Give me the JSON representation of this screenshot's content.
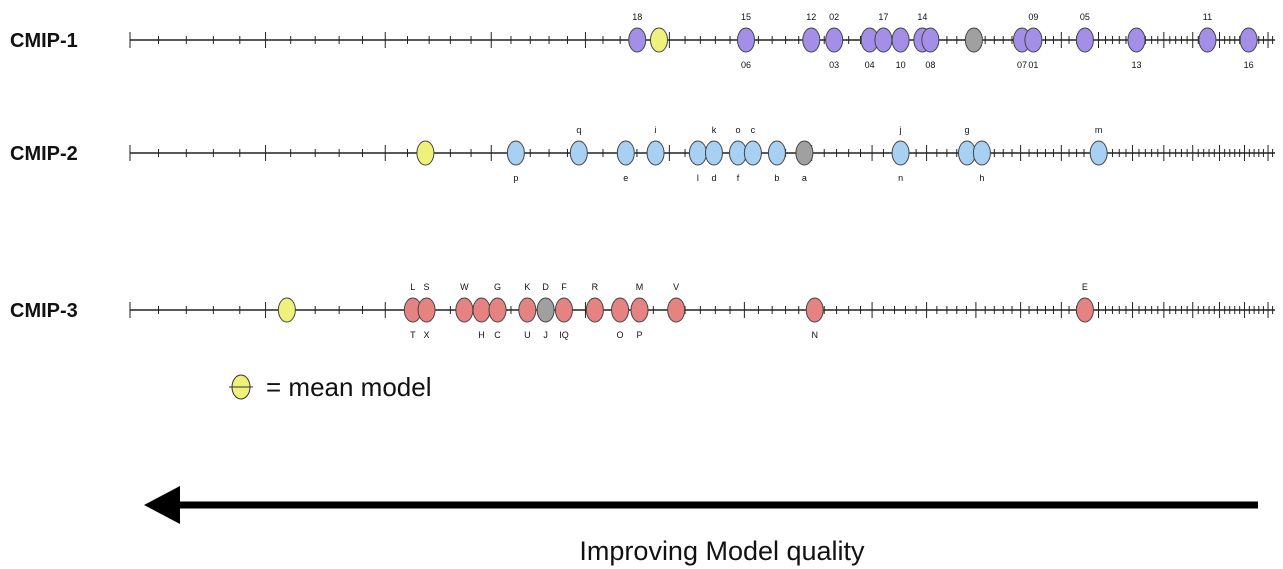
{
  "chart_data": {
    "type": "scatter",
    "xlabel": "Improving Model quality",
    "xlim": [
      0,
      100
    ],
    "legend": {
      "label": "= mean model",
      "color": "#eef27a"
    },
    "arrow_text": "Improving Model quality",
    "point_colors": {
      "mean": "#eef27a",
      "multi_model": "#a0a0a0"
    },
    "series": [
      {
        "name": "CMIP-1",
        "color": "#a48fe8",
        "mean": 46.2,
        "multi_model": 73.7,
        "points": [
          {
            "x": 44.3,
            "above": "18",
            "below": ""
          },
          {
            "x": 53.8,
            "above": "15",
            "below": "06"
          },
          {
            "x": 59.5,
            "above": "12",
            "below": ""
          },
          {
            "x": 61.5,
            "above": "02",
            "below": "03"
          },
          {
            "x": 64.6,
            "above": "",
            "below": "04"
          },
          {
            "x": 65.8,
            "above": "17",
            "below": ""
          },
          {
            "x": 67.3,
            "above": "",
            "below": "10"
          },
          {
            "x": 69.2,
            "above": "14",
            "below": ""
          },
          {
            "x": 69.9,
            "above": "",
            "below": "08"
          },
          {
            "x": 77.9,
            "above": "",
            "below": "07"
          },
          {
            "x": 78.9,
            "above": "09",
            "below": "01"
          },
          {
            "x": 83.4,
            "above": "05",
            "below": ""
          },
          {
            "x": 87.9,
            "above": "",
            "below": "13"
          },
          {
            "x": 94.1,
            "above": "11",
            "below": ""
          },
          {
            "x": 97.7,
            "above": "",
            "below": "16"
          }
        ]
      },
      {
        "name": "CMIP-2",
        "color": "#a8d0f2",
        "mean": 25.8,
        "multi_model": 58.9,
        "points": [
          {
            "x": 33.7,
            "above": "",
            "below": "p"
          },
          {
            "x": 39.2,
            "above": "q",
            "below": ""
          },
          {
            "x": 43.3,
            "above": "",
            "below": "e"
          },
          {
            "x": 45.9,
            "above": "i",
            "below": ""
          },
          {
            "x": 49.6,
            "above": "",
            "below": "l"
          },
          {
            "x": 51.0,
            "above": "k",
            "below": "d"
          },
          {
            "x": 53.1,
            "above": "o",
            "below": "f"
          },
          {
            "x": 54.4,
            "above": "c",
            "below": ""
          },
          {
            "x": 56.5,
            "above": "",
            "below": "b"
          },
          {
            "x": 67.3,
            "above": "j",
            "below": "n"
          },
          {
            "x": 73.1,
            "above": "g",
            "below": ""
          },
          {
            "x": 74.4,
            "above": "",
            "below": "h"
          },
          {
            "x": 84.6,
            "above": "m",
            "below": ""
          }
        ]
      },
      {
        "name": "CMIP-3",
        "color": "#e58383",
        "mean": 13.7,
        "multi_model": 36.3,
        "points": [
          {
            "x": 24.7,
            "above": "L",
            "below": "T"
          },
          {
            "x": 25.9,
            "above": "S",
            "below": "X"
          },
          {
            "x": 29.2,
            "above": "W",
            "below": ""
          },
          {
            "x": 30.7,
            "above": "",
            "below": "H"
          },
          {
            "x": 32.1,
            "above": "G",
            "below": "C"
          },
          {
            "x": 34.7,
            "above": "K",
            "below": "U"
          },
          {
            "x": 37.9,
            "above": "F",
            "below": "IQ"
          },
          {
            "x": 40.6,
            "above": "R",
            "below": ""
          },
          {
            "x": 42.8,
            "above": "",
            "below": "O"
          },
          {
            "x": 44.5,
            "above": "M",
            "below": "P"
          },
          {
            "x": 47.7,
            "above": "V",
            "below": ""
          },
          {
            "x": 59.8,
            "above": "",
            "below": "N"
          },
          {
            "x": 83.4,
            "above": "E",
            "below": ""
          }
        ]
      }
    ],
    "extra_labels": [
      {
        "series": "CMIP-1",
        "x": 73.7,
        "above": "",
        "below": ""
      },
      {
        "series": "CMIP-2",
        "x": 58.9,
        "above": "",
        "below": "a"
      },
      {
        "series": "CMIP-3",
        "x": 36.3,
        "above": "D",
        "below": "J"
      }
    ]
  }
}
